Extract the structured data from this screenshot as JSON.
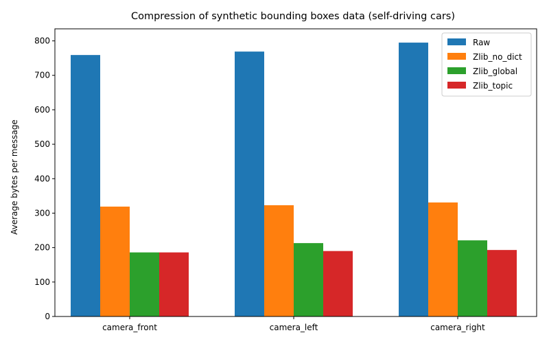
{
  "chart_data": {
    "type": "bar",
    "title": "Compression of synthetic bounding boxes data (self-driving cars)",
    "xlabel": "",
    "ylabel": "Average bytes per message",
    "categories": [
      "camera_front",
      "camera_left",
      "camera_right"
    ],
    "ylim": [
      0,
      835
    ],
    "yticks": [
      0,
      100,
      200,
      300,
      400,
      500,
      600,
      700,
      800
    ],
    "grid": false,
    "legend_position": "top-right",
    "series": [
      {
        "name": "Raw",
        "color": "#1f77b4",
        "values": [
          759,
          769,
          795
        ]
      },
      {
        "name": "Zlib_no_dict",
        "color": "#ff7f0e",
        "values": [
          319,
          323,
          331
        ]
      },
      {
        "name": "Zlib_global",
        "color": "#2ca02c",
        "values": [
          186,
          213,
          221
        ]
      },
      {
        "name": "Zlib_topic",
        "color": "#d62728",
        "values": [
          186,
          190,
          193
        ]
      }
    ]
  }
}
